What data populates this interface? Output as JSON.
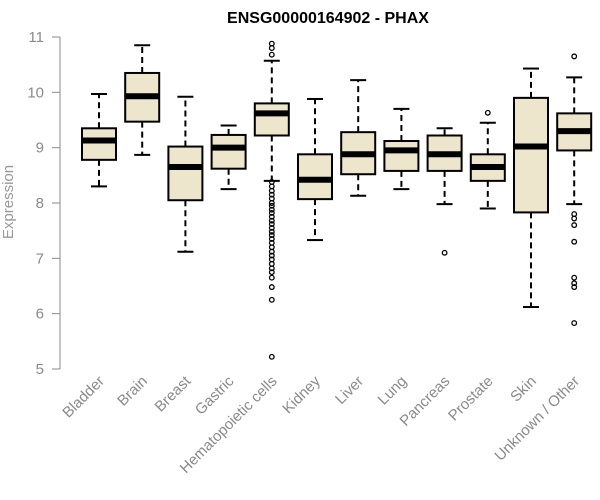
{
  "chart_data": {
    "type": "boxplot",
    "title": "ENSG00000164902 - PHAX",
    "xlabel": "",
    "ylabel": "Expression",
    "ylim": [
      5,
      11
    ],
    "yticks": [
      5,
      6,
      7,
      8,
      9,
      10,
      11
    ],
    "grid": false,
    "box_fill": "#ede6cc",
    "outline_color": "#000000",
    "axis_color": "#8a8a8a",
    "categories": [
      "Bladder",
      "Brain",
      "Breast",
      "Gastric",
      "Hematopoietic cells",
      "Kidney",
      "Liver",
      "Lung",
      "Pancreas",
      "Prostate",
      "Skin",
      "Unknown / Other"
    ],
    "boxes": [
      {
        "whisker_low": 8.3,
        "q1": 8.78,
        "median": 9.13,
        "q3": 9.35,
        "whisker_high": 9.97,
        "outliers": []
      },
      {
        "whisker_low": 8.87,
        "q1": 9.47,
        "median": 9.93,
        "q3": 10.35,
        "whisker_high": 10.85,
        "outliers": []
      },
      {
        "whisker_low": 7.12,
        "q1": 8.05,
        "median": 8.65,
        "q3": 9.02,
        "whisker_high": 9.92,
        "outliers": []
      },
      {
        "whisker_low": 8.25,
        "q1": 8.62,
        "median": 9.0,
        "q3": 9.23,
        "whisker_high": 9.4,
        "outliers": []
      },
      {
        "whisker_low": 8.4,
        "q1": 9.22,
        "median": 9.62,
        "q3": 9.8,
        "whisker_high": 10.57,
        "outliers": [
          10.88,
          10.8,
          10.68,
          8.38,
          8.3,
          8.22,
          8.15,
          8.08,
          8.0,
          7.95,
          7.88,
          7.82,
          7.75,
          7.68,
          7.62,
          7.55,
          7.48,
          7.42,
          7.35,
          7.28,
          7.2,
          7.12,
          7.05,
          6.98,
          6.9,
          6.82,
          6.75,
          6.65,
          6.48,
          6.25,
          5.22
        ]
      },
      {
        "whisker_low": 7.33,
        "q1": 8.07,
        "median": 8.42,
        "q3": 8.88,
        "whisker_high": 9.88,
        "outliers": []
      },
      {
        "whisker_low": 8.13,
        "q1": 8.52,
        "median": 8.88,
        "q3": 9.28,
        "whisker_high": 10.22,
        "outliers": []
      },
      {
        "whisker_low": 8.25,
        "q1": 8.58,
        "median": 8.95,
        "q3": 9.12,
        "whisker_high": 9.7,
        "outliers": []
      },
      {
        "whisker_low": 7.98,
        "q1": 8.58,
        "median": 8.88,
        "q3": 9.22,
        "whisker_high": 9.35,
        "outliers": [
          7.1
        ]
      },
      {
        "whisker_low": 7.9,
        "q1": 8.4,
        "median": 8.65,
        "q3": 8.88,
        "whisker_high": 9.45,
        "outliers": [
          9.63
        ]
      },
      {
        "whisker_low": 6.12,
        "q1": 7.83,
        "median": 9.02,
        "q3": 9.9,
        "whisker_high": 10.43,
        "outliers": []
      },
      {
        "whisker_low": 7.98,
        "q1": 8.95,
        "median": 9.3,
        "q3": 9.62,
        "whisker_high": 10.27,
        "outliers": [
          10.65,
          7.8,
          7.72,
          7.6,
          7.3,
          6.65,
          6.55,
          6.48,
          5.83
        ]
      }
    ]
  }
}
